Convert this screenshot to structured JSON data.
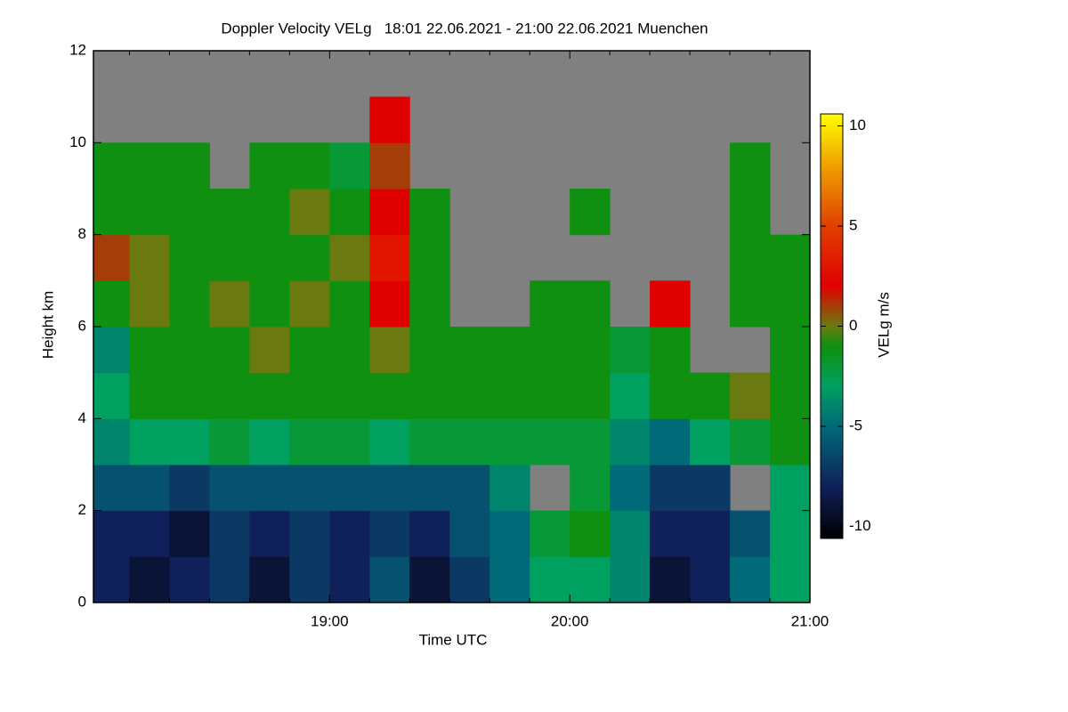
{
  "chart_data": {
    "type": "heatmap",
    "title": "Doppler Velocity VELg   18:01 22.06.2021 - 21:00 22.06.2021 Muenchen",
    "x_label": "Time UTC",
    "y_label": "Height km",
    "colorbar_label": "VELg m/s",
    "xlim": [
      1,
      180
    ],
    "xticks": [
      {
        "value": 60,
        "label": "19:00"
      },
      {
        "value": 120,
        "label": "20:00"
      },
      {
        "value": 180,
        "label": "21:00"
      }
    ],
    "xminorticks": [
      10,
      20,
      30,
      40,
      50,
      70,
      80,
      90,
      100,
      110,
      130,
      140,
      150,
      160,
      170
    ],
    "ylim": [
      0,
      12
    ],
    "yticks": [
      0,
      2,
      4,
      6,
      8,
      10,
      12
    ],
    "x_edges": [
      1,
      10,
      20,
      30,
      40,
      50,
      60,
      70,
      80,
      90,
      100,
      110,
      120,
      130,
      140,
      150,
      160,
      170,
      180
    ],
    "y_edges": [
      0,
      1,
      2,
      3,
      4,
      5,
      6,
      7,
      8,
      9,
      10,
      11,
      12
    ],
    "values": [
      [
        -8,
        -9,
        -8,
        -7,
        -9,
        -7,
        -8,
        -6,
        -9,
        -7,
        -5,
        -3,
        -3,
        -4,
        -9,
        -8,
        -5,
        -3
      ],
      [
        -8,
        -8,
        -9,
        -7,
        -8,
        -7,
        -8,
        -7,
        -8,
        -6,
        -5,
        -2,
        -1,
        -4,
        -8,
        -8,
        -6,
        -3
      ],
      [
        -6,
        -6,
        -7,
        -6,
        -6,
        -6,
        -6,
        -6,
        -6,
        -6,
        -4,
        null,
        -2,
        -5,
        -7,
        -7,
        null,
        -3
      ],
      [
        -4,
        -3,
        -3,
        -2,
        -3,
        -2,
        -2,
        -3,
        -2,
        -2,
        -2,
        -2,
        -2,
        -4,
        -5,
        -3,
        -2,
        -1
      ],
      [
        -3,
        -1,
        -1,
        -1,
        -1,
        -1,
        -1,
        -1,
        -1,
        -1,
        -1,
        -1,
        -1,
        -3,
        -1,
        -1,
        0,
        -1
      ],
      [
        -4,
        -1,
        -1,
        -1,
        0,
        -1,
        -1,
        0,
        -1,
        -1,
        -1,
        -1,
        -1,
        -2,
        -1,
        null,
        null,
        -1
      ],
      [
        -1,
        0,
        -1,
        0,
        -1,
        0,
        -1,
        2,
        -1,
        null,
        null,
        -1,
        -1,
        null,
        2,
        null,
        -1,
        -1
      ],
      [
        1,
        0,
        -1,
        -1,
        -1,
        -1,
        0,
        3,
        -1,
        null,
        null,
        null,
        null,
        null,
        null,
        null,
        -1,
        -1
      ],
      [
        -1,
        -1,
        -1,
        -1,
        -1,
        0,
        -1,
        2,
        -1,
        null,
        null,
        null,
        -1,
        null,
        null,
        null,
        -1,
        null
      ],
      [
        -1,
        -1,
        -1,
        null,
        -1,
        -1,
        -2,
        1,
        null,
        null,
        null,
        null,
        null,
        null,
        null,
        null,
        -1,
        null
      ],
      [
        null,
        null,
        null,
        null,
        null,
        null,
        null,
        2,
        null,
        null,
        null,
        null,
        null,
        null,
        null,
        null,
        null,
        null
      ],
      [
        null,
        null,
        null,
        null,
        null,
        null,
        null,
        null,
        null,
        null,
        null,
        null,
        null,
        null,
        null,
        null,
        null,
        null
      ]
    ],
    "missing_color": "#808080",
    "clim": [
      -10.6,
      10.6
    ],
    "cticks": [
      -10,
      -5,
      0,
      5,
      10
    ],
    "colormap": [
      [
        -10.6,
        "#000000"
      ],
      [
        -8,
        "#10205a"
      ],
      [
        -5,
        "#006a78"
      ],
      [
        -3,
        "#00a060"
      ],
      [
        -1,
        "#109010"
      ],
      [
        0,
        "#6a7a10"
      ],
      [
        2,
        "#e00000"
      ],
      [
        5,
        "#e04000"
      ],
      [
        8,
        "#f0a000"
      ],
      [
        10.6,
        "#ffff00"
      ]
    ]
  }
}
